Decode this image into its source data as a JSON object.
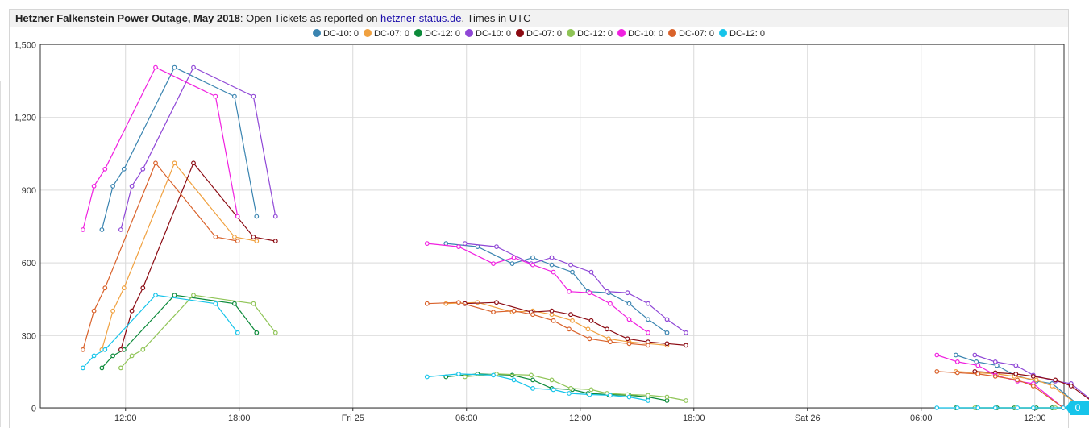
{
  "title": {
    "bold": "Hetzner Falkenstein Power Outage, May 2018",
    "pre_link": ": Open Tickets as reported on ",
    "link": "hetzner-status.de",
    "post_link": ". Times in UTC"
  },
  "last_value_badge": "0",
  "chart_data": {
    "type": "line",
    "x_type": "datetime",
    "x_ticks": [
      "12:00",
      "18:00",
      "Fri 25",
      "06:00",
      "12:00",
      "18:00",
      "Sat 26",
      "06:00",
      "12:00"
    ],
    "y_ticks": [
      "0",
      "300",
      "600",
      "900",
      "1,200",
      "1,500"
    ],
    "ylim": [
      0,
      1500
    ],
    "grid": true,
    "legend_position": "top-center",
    "series": [
      {
        "name": "DC-10: 0",
        "color": "#3a84b0",
        "points": [
          [
            "2018-05-24 10:45",
            735
          ],
          [
            "2018-05-24 11:20",
            915
          ],
          [
            "2018-05-24 11:55",
            985
          ],
          [
            "2018-05-24 14:35",
            1405
          ],
          [
            "2018-05-24 17:45",
            1285
          ],
          [
            "2018-05-24 18:55",
            790
          ],
          [
            "2018-05-25 04:55",
            678
          ],
          [
            "2018-05-25 06:35",
            665
          ],
          [
            "2018-05-25 08:25",
            595
          ],
          [
            "2018-05-25 09:30",
            620
          ],
          [
            "2018-05-25 10:30",
            590
          ],
          [
            "2018-05-25 11:35",
            560
          ],
          [
            "2018-05-25 12:25",
            480
          ],
          [
            "2018-05-25 13:30",
            475
          ],
          [
            "2018-05-25 14:35",
            430
          ],
          [
            "2018-05-25 15:35",
            365
          ],
          [
            "2018-05-25 16:35",
            310
          ],
          [
            "2018-05-26 07:50",
            218
          ],
          [
            "2018-05-26 08:55",
            190
          ],
          [
            "2018-05-26 10:00",
            175
          ],
          [
            "2018-05-26 10:55",
            135
          ],
          [
            "2018-05-26 12:05",
            110
          ],
          [
            "2018-05-26 12:55",
            100
          ],
          [
            "2018-05-26 14:30",
            0
          ]
        ]
      },
      {
        "name": "DC-07: 0",
        "color": "#f0a140",
        "points": [
          [
            "2018-05-24 10:45",
            240
          ],
          [
            "2018-05-24 11:20",
            400
          ],
          [
            "2018-05-24 11:55",
            495
          ],
          [
            "2018-05-24 14:35",
            1010
          ],
          [
            "2018-05-24 17:45",
            705
          ],
          [
            "2018-05-24 18:55",
            688
          ],
          [
            "2018-05-25 04:55",
            430
          ],
          [
            "2018-05-25 06:35",
            435
          ],
          [
            "2018-05-25 08:25",
            395
          ],
          [
            "2018-05-25 09:30",
            400
          ],
          [
            "2018-05-25 10:30",
            385
          ],
          [
            "2018-05-25 11:35",
            360
          ],
          [
            "2018-05-25 12:25",
            325
          ],
          [
            "2018-05-25 13:30",
            285
          ],
          [
            "2018-05-25 14:35",
            272
          ],
          [
            "2018-05-25 15:35",
            265
          ],
          [
            "2018-05-25 16:35",
            258
          ],
          [
            "2018-05-26 07:50",
            150
          ],
          [
            "2018-05-26 08:55",
            145
          ],
          [
            "2018-05-26 10:00",
            140
          ],
          [
            "2018-05-26 10:55",
            130
          ],
          [
            "2018-05-26 12:05",
            115
          ],
          [
            "2018-05-26 12:55",
            90
          ],
          [
            "2018-05-26 14:30",
            0
          ]
        ]
      },
      {
        "name": "DC-12: 0",
        "color": "#0c8a3a",
        "points": [
          [
            "2018-05-24 10:45",
            165
          ],
          [
            "2018-05-24 11:20",
            215
          ],
          [
            "2018-05-24 11:55",
            240
          ],
          [
            "2018-05-24 14:35",
            465
          ],
          [
            "2018-05-24 17:45",
            430
          ],
          [
            "2018-05-24 18:55",
            310
          ],
          [
            "2018-05-25 04:55",
            128
          ],
          [
            "2018-05-25 06:35",
            140
          ],
          [
            "2018-05-25 08:25",
            135
          ],
          [
            "2018-05-25 09:30",
            115
          ],
          [
            "2018-05-25 10:30",
            80
          ],
          [
            "2018-05-25 11:35",
            75
          ],
          [
            "2018-05-25 12:25",
            60
          ],
          [
            "2018-05-25 13:30",
            55
          ],
          [
            "2018-05-25 14:35",
            52
          ],
          [
            "2018-05-25 15:35",
            45
          ],
          [
            "2018-05-25 16:35",
            30
          ],
          [
            "2018-05-26 07:50",
            0
          ],
          [
            "2018-05-26 08:55",
            0
          ],
          [
            "2018-05-26 10:00",
            0
          ],
          [
            "2018-05-26 10:55",
            0
          ],
          [
            "2018-05-26 12:05",
            0
          ],
          [
            "2018-05-26 12:55",
            0
          ],
          [
            "2018-05-26 14:30",
            0
          ]
        ]
      },
      {
        "name": "DC-10: 0",
        "color": "#8f47d6",
        "points": [
          [
            "2018-05-24 11:45",
            735
          ],
          [
            "2018-05-24 12:20",
            915
          ],
          [
            "2018-05-24 12:55",
            985
          ],
          [
            "2018-05-24 15:35",
            1405
          ],
          [
            "2018-05-24 18:45",
            1285
          ],
          [
            "2018-05-24 19:55",
            790
          ],
          [
            "2018-05-25 05:55",
            678
          ],
          [
            "2018-05-25 07:35",
            665
          ],
          [
            "2018-05-25 09:25",
            595
          ],
          [
            "2018-05-25 10:30",
            620
          ],
          [
            "2018-05-25 11:30",
            590
          ],
          [
            "2018-05-25 12:35",
            560
          ],
          [
            "2018-05-25 13:25",
            480
          ],
          [
            "2018-05-25 14:30",
            475
          ],
          [
            "2018-05-25 15:35",
            430
          ],
          [
            "2018-05-25 16:35",
            365
          ],
          [
            "2018-05-25 17:35",
            310
          ],
          [
            "2018-05-26 08:50",
            218
          ],
          [
            "2018-05-26 09:55",
            190
          ],
          [
            "2018-05-26 11:00",
            175
          ],
          [
            "2018-05-26 11:55",
            135
          ],
          [
            "2018-05-26 13:05",
            110
          ],
          [
            "2018-05-26 13:55",
            100
          ],
          [
            "2018-05-26 15:30",
            0
          ]
        ]
      },
      {
        "name": "DC-07: 0",
        "color": "#8b0a12",
        "points": [
          [
            "2018-05-24 11:45",
            240
          ],
          [
            "2018-05-24 12:20",
            400
          ],
          [
            "2018-05-24 12:55",
            495
          ],
          [
            "2018-05-24 15:35",
            1010
          ],
          [
            "2018-05-24 18:45",
            705
          ],
          [
            "2018-05-24 19:55",
            688
          ],
          [
            "2018-05-25 05:55",
            430
          ],
          [
            "2018-05-25 07:35",
            435
          ],
          [
            "2018-05-25 09:25",
            395
          ],
          [
            "2018-05-25 10:30",
            400
          ],
          [
            "2018-05-25 11:30",
            385
          ],
          [
            "2018-05-25 12:35",
            360
          ],
          [
            "2018-05-25 13:25",
            325
          ],
          [
            "2018-05-25 14:30",
            285
          ],
          [
            "2018-05-25 15:35",
            272
          ],
          [
            "2018-05-25 16:35",
            265
          ],
          [
            "2018-05-25 17:35",
            258
          ],
          [
            "2018-05-26 08:50",
            150
          ],
          [
            "2018-05-26 09:55",
            145
          ],
          [
            "2018-05-26 11:00",
            140
          ],
          [
            "2018-05-26 11:55",
            130
          ],
          [
            "2018-05-26 13:05",
            115
          ],
          [
            "2018-05-26 13:55",
            90
          ],
          [
            "2018-05-26 15:30",
            0
          ]
        ]
      },
      {
        "name": "DC-12: 0",
        "color": "#8fc456",
        "points": [
          [
            "2018-05-24 11:45",
            165
          ],
          [
            "2018-05-24 12:20",
            215
          ],
          [
            "2018-05-24 12:55",
            240
          ],
          [
            "2018-05-24 15:35",
            465
          ],
          [
            "2018-05-24 18:45",
            430
          ],
          [
            "2018-05-24 19:55",
            310
          ],
          [
            "2018-05-25 05:55",
            128
          ],
          [
            "2018-05-25 07:35",
            140
          ],
          [
            "2018-05-25 09:25",
            135
          ],
          [
            "2018-05-25 10:30",
            115
          ],
          [
            "2018-05-25 11:30",
            80
          ],
          [
            "2018-05-25 12:35",
            75
          ],
          [
            "2018-05-25 13:25",
            60
          ],
          [
            "2018-05-25 14:30",
            55
          ],
          [
            "2018-05-25 15:35",
            52
          ],
          [
            "2018-05-25 16:35",
            45
          ],
          [
            "2018-05-25 17:35",
            30
          ],
          [
            "2018-05-26 08:50",
            0
          ],
          [
            "2018-05-26 09:55",
            0
          ],
          [
            "2018-05-26 11:00",
            0
          ],
          [
            "2018-05-26 11:55",
            0
          ],
          [
            "2018-05-26 13:05",
            0
          ],
          [
            "2018-05-26 13:55",
            0
          ],
          [
            "2018-05-26 15:30",
            0
          ]
        ]
      },
      {
        "name": "DC-10: 0",
        "color": "#f020e0",
        "points": [
          [
            "2018-05-24 09:45",
            735
          ],
          [
            "2018-05-24 10:20",
            915
          ],
          [
            "2018-05-24 10:55",
            985
          ],
          [
            "2018-05-24 13:35",
            1405
          ],
          [
            "2018-05-24 16:45",
            1285
          ],
          [
            "2018-05-24 17:55",
            790
          ],
          [
            "2018-05-25 03:55",
            678
          ],
          [
            "2018-05-25 05:35",
            665
          ],
          [
            "2018-05-25 07:25",
            595
          ],
          [
            "2018-05-25 08:30",
            620
          ],
          [
            "2018-05-25 09:30",
            590
          ],
          [
            "2018-05-25 10:35",
            560
          ],
          [
            "2018-05-25 11:25",
            480
          ],
          [
            "2018-05-25 12:30",
            475
          ],
          [
            "2018-05-25 13:35",
            430
          ],
          [
            "2018-05-25 14:35",
            365
          ],
          [
            "2018-05-25 15:35",
            310
          ],
          [
            "2018-05-26 06:50",
            218
          ],
          [
            "2018-05-26 07:55",
            190
          ],
          [
            "2018-05-26 09:00",
            175
          ],
          [
            "2018-05-26 09:55",
            135
          ],
          [
            "2018-05-26 11:05",
            110
          ],
          [
            "2018-05-26 11:55",
            100
          ],
          [
            "2018-05-26 13:30",
            0
          ]
        ]
      },
      {
        "name": "DC-07: 0",
        "color": "#d9622b",
        "points": [
          [
            "2018-05-24 09:45",
            240
          ],
          [
            "2018-05-24 10:20",
            400
          ],
          [
            "2018-05-24 10:55",
            495
          ],
          [
            "2018-05-24 13:35",
            1010
          ],
          [
            "2018-05-24 16:45",
            705
          ],
          [
            "2018-05-24 17:55",
            688
          ],
          [
            "2018-05-25 03:55",
            430
          ],
          [
            "2018-05-25 05:35",
            435
          ],
          [
            "2018-05-25 07:25",
            395
          ],
          [
            "2018-05-25 08:30",
            400
          ],
          [
            "2018-05-25 09:30",
            385
          ],
          [
            "2018-05-25 10:35",
            360
          ],
          [
            "2018-05-25 11:25",
            325
          ],
          [
            "2018-05-25 12:30",
            285
          ],
          [
            "2018-05-25 13:35",
            272
          ],
          [
            "2018-05-25 14:35",
            265
          ],
          [
            "2018-05-25 15:35",
            258
          ],
          [
            "2018-05-26 06:50",
            150
          ],
          [
            "2018-05-26 07:55",
            145
          ],
          [
            "2018-05-26 09:00",
            140
          ],
          [
            "2018-05-26 09:55",
            130
          ],
          [
            "2018-05-26 11:05",
            115
          ],
          [
            "2018-05-26 11:55",
            90
          ],
          [
            "2018-05-26 13:30",
            0
          ]
        ]
      },
      {
        "name": "DC-12: 0",
        "color": "#16c4ea",
        "points": [
          [
            "2018-05-24 09:45",
            165
          ],
          [
            "2018-05-24 10:20",
            215
          ],
          [
            "2018-05-24 10:55",
            240
          ],
          [
            "2018-05-24 13:35",
            465
          ],
          [
            "2018-05-24 16:45",
            430
          ],
          [
            "2018-05-24 17:55",
            310
          ],
          [
            "2018-05-25 03:55",
            128
          ],
          [
            "2018-05-25 05:35",
            140
          ],
          [
            "2018-05-25 07:25",
            135
          ],
          [
            "2018-05-25 08:30",
            115
          ],
          [
            "2018-05-25 09:30",
            80
          ],
          [
            "2018-05-25 10:35",
            75
          ],
          [
            "2018-05-25 11:25",
            60
          ],
          [
            "2018-05-25 12:30",
            55
          ],
          [
            "2018-05-25 13:35",
            52
          ],
          [
            "2018-05-25 14:35",
            45
          ],
          [
            "2018-05-25 15:35",
            30
          ],
          [
            "2018-05-26 06:50",
            0
          ],
          [
            "2018-05-26 07:55",
            0
          ],
          [
            "2018-05-26 09:00",
            0
          ],
          [
            "2018-05-26 09:55",
            0
          ],
          [
            "2018-05-26 11:05",
            0
          ],
          [
            "2018-05-26 11:55",
            0
          ],
          [
            "2018-05-26 13:30",
            0
          ]
        ]
      }
    ]
  }
}
